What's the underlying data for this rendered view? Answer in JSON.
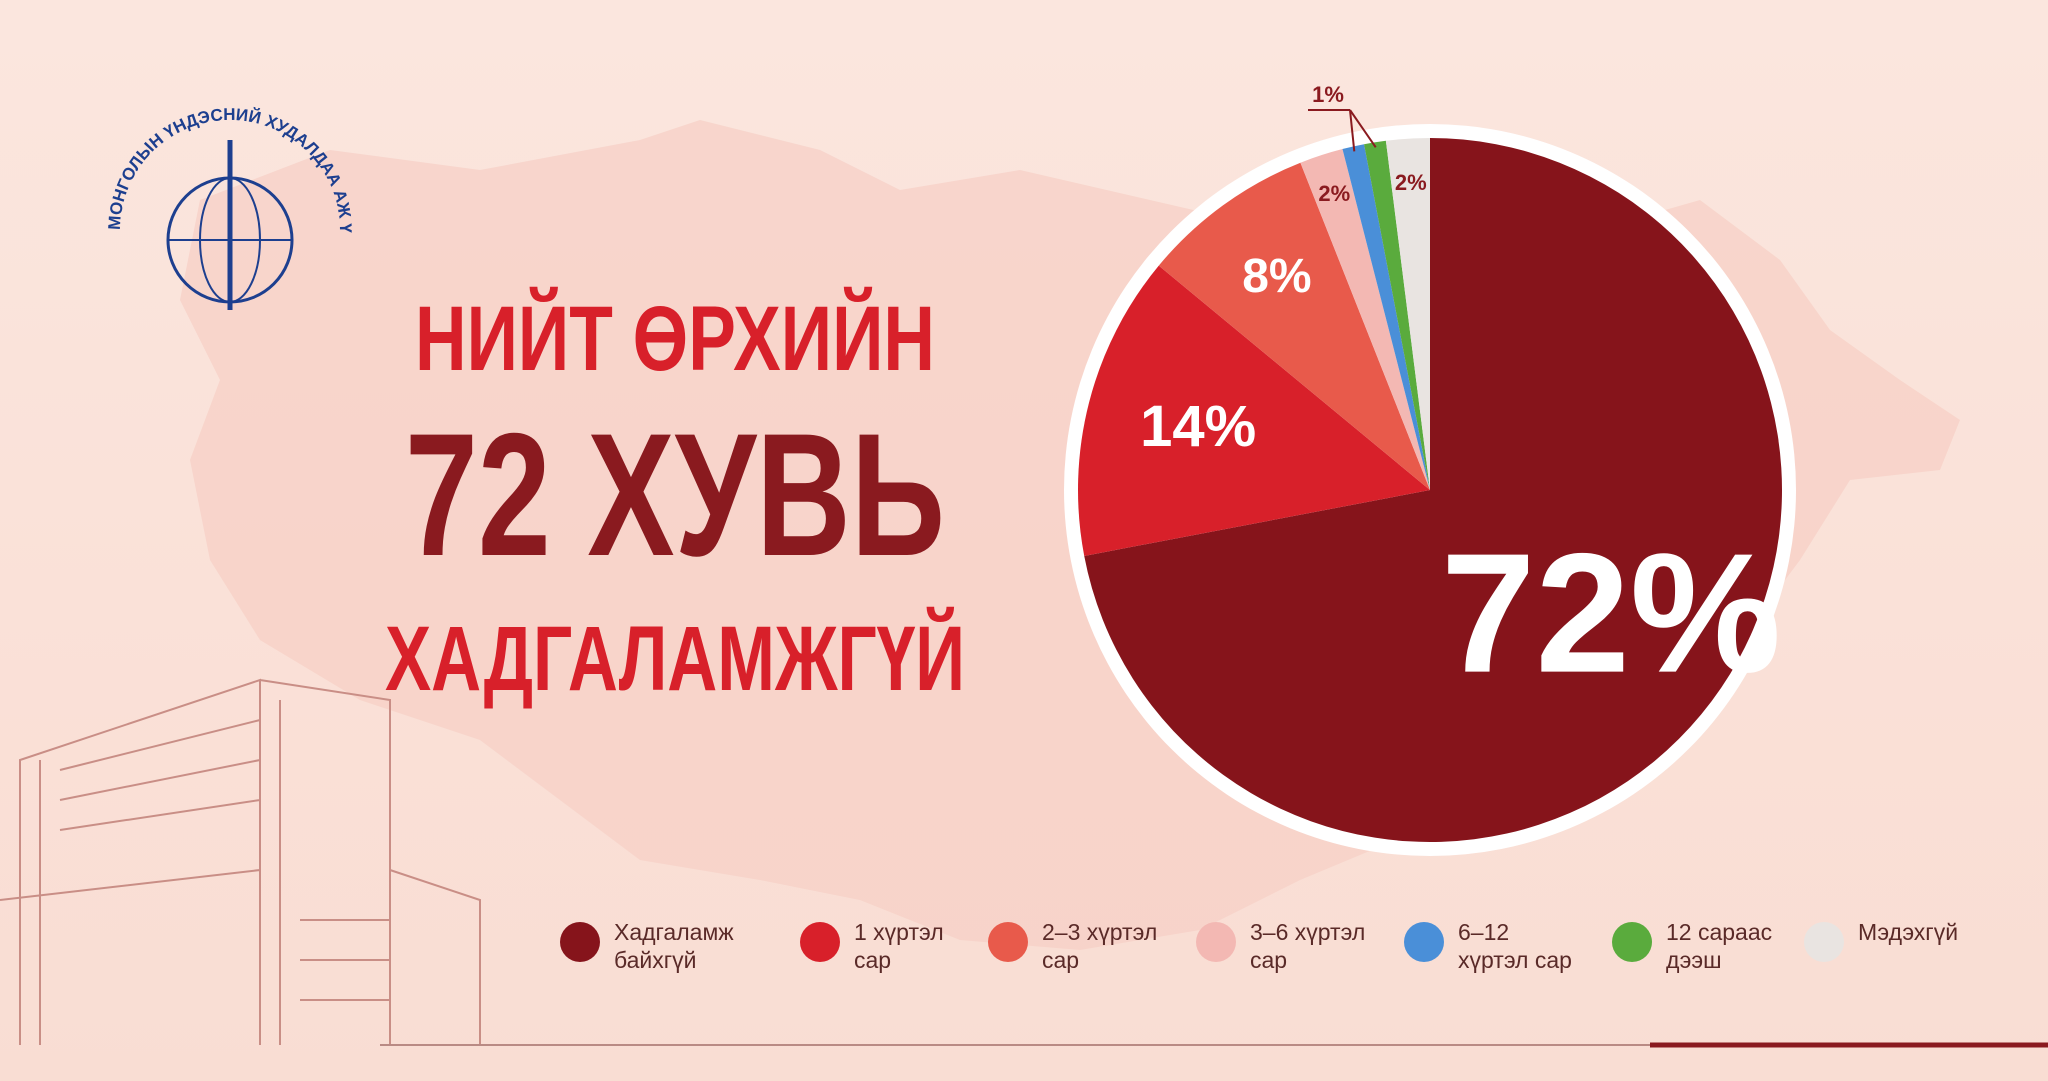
{
  "chart_data": {
    "type": "pie",
    "headline": [
      "НИЙТ ӨРХИЙН",
      "72 ХУВЬ",
      "ХАДГАЛАМЖГҮЙ"
    ],
    "organization": "МОНГОЛЫН ҮНДЭСНИЙ ХУДАЛДАА АЖ ҮЙЛДВЭРИЙН ТАНХИМ",
    "categories": [
      "Хадгаламж байхгүй",
      "1 хүртэл сар",
      "2–3 хүртэл сар",
      "3–6 хүртэл сар",
      "6–12 хүртэл сар",
      "12 сараас дээш",
      "Мэдэхгүй"
    ],
    "values": [
      72,
      14,
      8,
      2,
      1,
      1,
      2
    ],
    "value_labels": [
      "72%",
      "14%",
      "8%",
      "2%",
      "1%",
      null,
      "2%"
    ],
    "colors": [
      "#86141b",
      "#d8202a",
      "#e85a4b",
      "#f3b8b3",
      "#4a8fd8",
      "#5aab3d",
      "#e9e4e1"
    ]
  }
}
